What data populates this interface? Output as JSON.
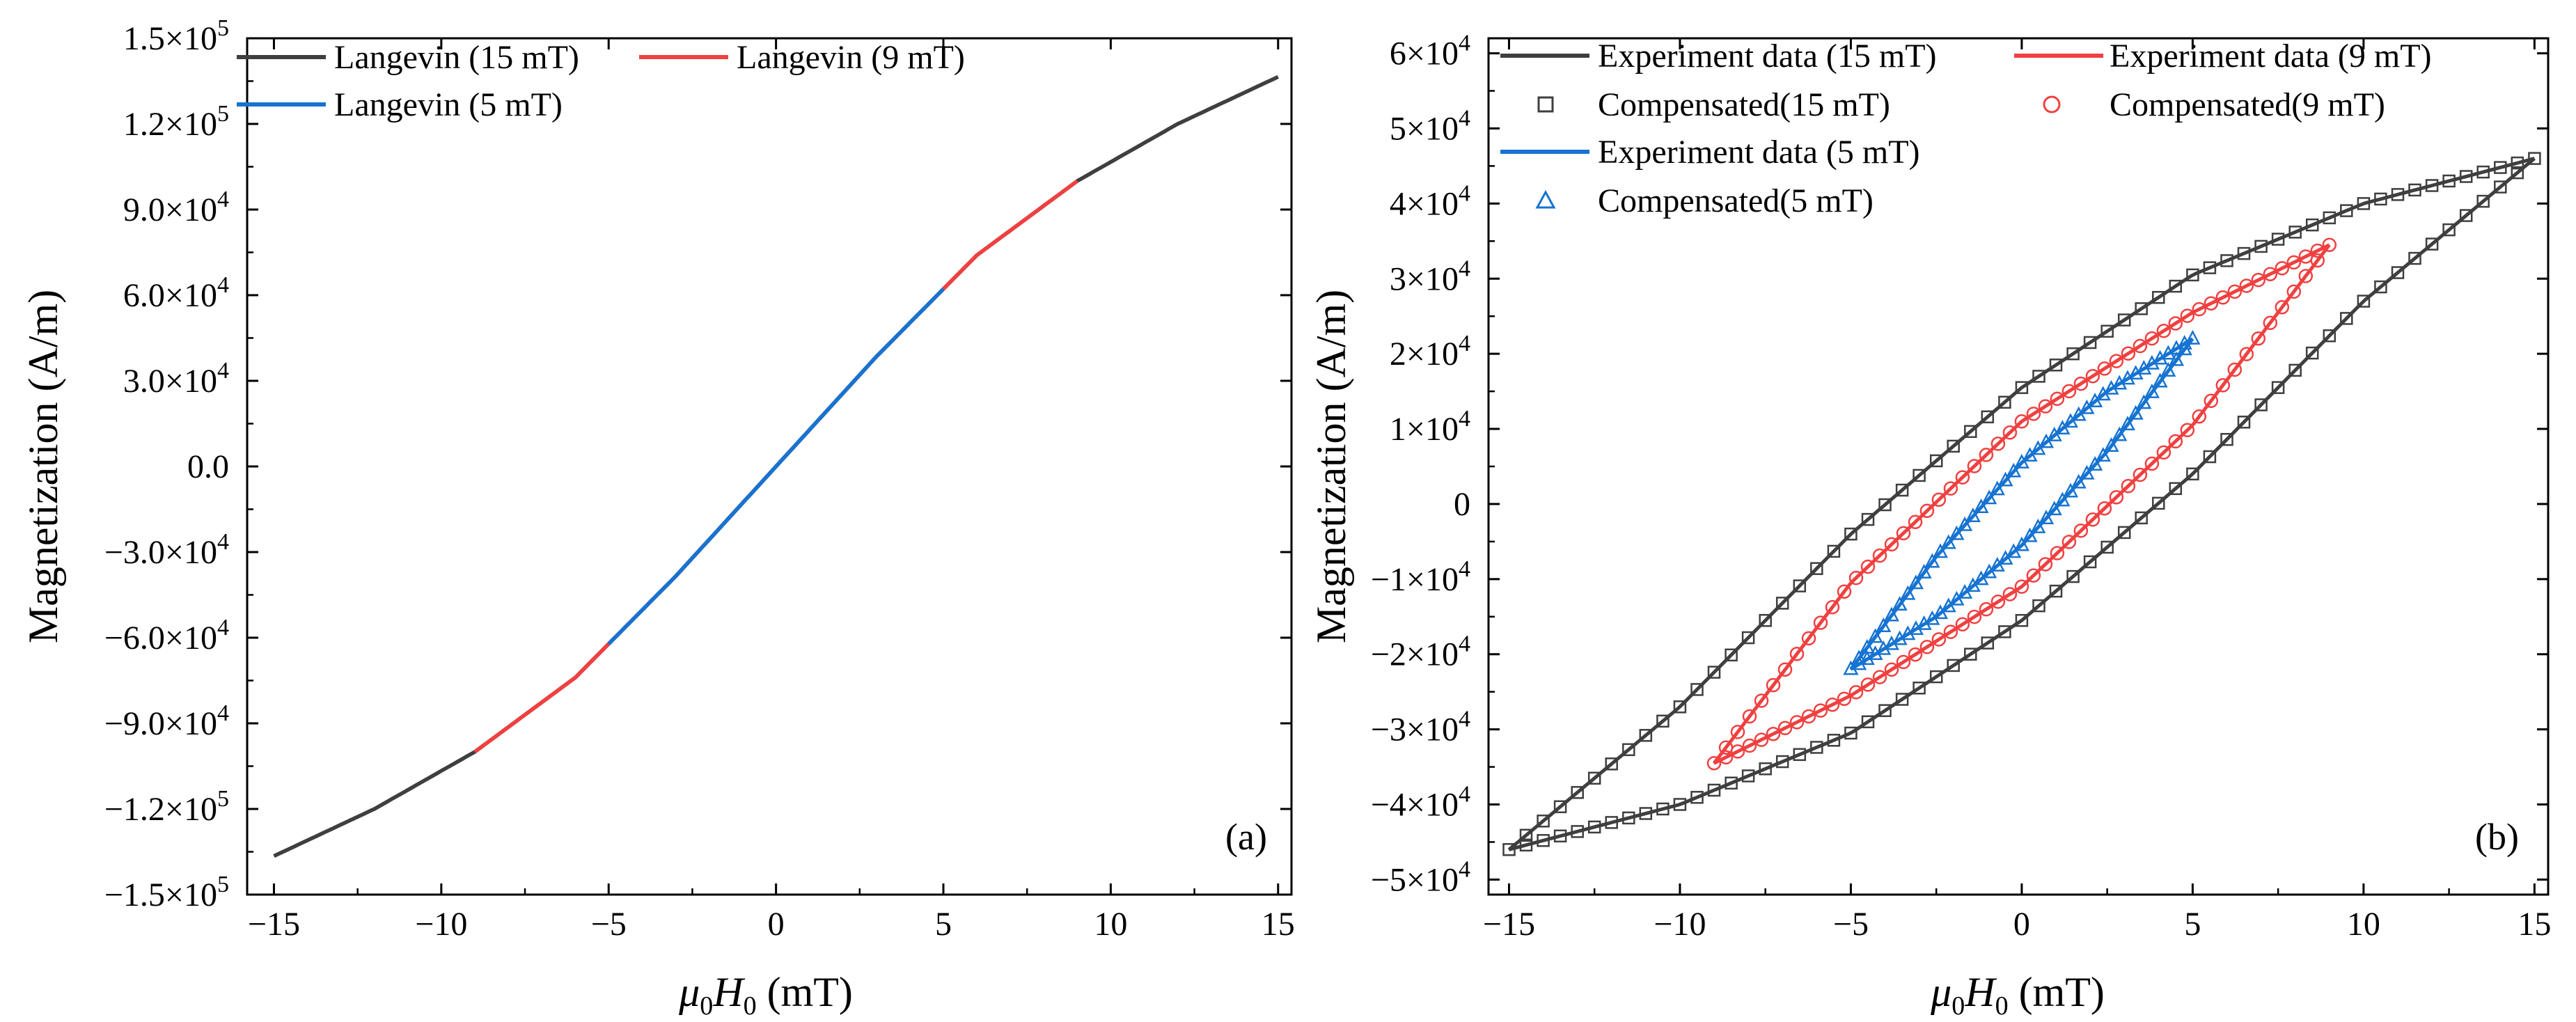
{
  "colors": {
    "c15": "#3f3f3f",
    "c9": "#f04040",
    "c5": "#1673d1",
    "axis": "#000000"
  },
  "chart_data": [
    {
      "type": "line",
      "panel": "(a)",
      "xlabel": "μ0H0 (mT)",
      "xlabel_parts": {
        "mu": "μ",
        "mu_sub": "0",
        "h": "H",
        "h_sub": "0",
        "unit": " (mT)"
      },
      "ylabel": "Magnetization (A/m)",
      "xlim": [
        -15.8,
        15.4
      ],
      "ylim": [
        -150000,
        150000
      ],
      "x_ticks": [
        -15,
        -10,
        -5,
        0,
        5,
        10,
        15
      ],
      "x_tick_labels": [
        "−15",
        "−10",
        "−5",
        "0",
        "5",
        "10",
        "15"
      ],
      "y_ticks": [
        150000,
        120000,
        90000,
        60000,
        30000,
        0,
        -30000,
        -60000,
        -90000,
        -120000,
        -150000
      ],
      "y_tick_labels": [
        {
          "m": "1.5×10",
          "e": "5"
        },
        {
          "m": "1.2×10",
          "e": "5"
        },
        {
          "m": "9.0×10",
          "e": "4"
        },
        {
          "m": "6.0×10",
          "e": "4"
        },
        {
          "m": "3.0×10",
          "e": "4"
        },
        {
          "m": "0.0",
          "e": ""
        },
        {
          "m": "−3.0×10",
          "e": "4"
        },
        {
          "m": "−6.0×10",
          "e": "4"
        },
        {
          "m": "−9.0×10",
          "e": "4"
        },
        {
          "m": "−1.2×10",
          "e": "5"
        },
        {
          "m": "−1.5×10",
          "e": "5"
        }
      ],
      "legend_position": "top-left",
      "series": [
        {
          "name": "Langevin (15 mT)",
          "color_key": "c15",
          "x_range": [
            -15,
            15
          ],
          "x": [
            -15,
            -12,
            -9,
            -6,
            -3,
            0,
            3,
            6,
            9,
            12,
            15
          ],
          "y": [
            -136500,
            -120000,
            -100000,
            -74000,
            -38500,
            0,
            38500,
            74000,
            100000,
            120000,
            136500
          ]
        },
        {
          "name": "Langevin (9 mT)",
          "color_key": "c9",
          "x_range": [
            -9,
            9
          ]
        },
        {
          "name": "Langevin (5 mT)",
          "color_key": "c5",
          "x_range": [
            -5,
            5
          ]
        }
      ]
    },
    {
      "type": "line",
      "panel": "(b)",
      "xlabel": "μ0H0 (mT)",
      "xlabel_parts": {
        "mu": "μ",
        "mu_sub": "0",
        "h": "H",
        "h_sub": "0",
        "unit": " (mT)"
      },
      "ylabel": "Magnetization (A/m)",
      "xlim": [
        -15.6,
        15.4
      ],
      "ylim": [
        -52000,
        62000
      ],
      "x_ticks": [
        -15,
        -10,
        -5,
        0,
        5,
        10,
        15
      ],
      "x_tick_labels": [
        "−15",
        "−10",
        "−5",
        "0",
        "5",
        "10",
        "15"
      ],
      "y_ticks": [
        60000,
        50000,
        40000,
        30000,
        20000,
        10000,
        0,
        -10000,
        -20000,
        -30000,
        -40000,
        -50000
      ],
      "y_tick_labels": [
        {
          "m": "6×10",
          "e": "4"
        },
        {
          "m": "5×10",
          "e": "4"
        },
        {
          "m": "4×10",
          "e": "4"
        },
        {
          "m": "3×10",
          "e": "4"
        },
        {
          "m": "2×10",
          "e": "4"
        },
        {
          "m": "1×10",
          "e": "4"
        },
        {
          "m": "0",
          "e": ""
        },
        {
          "m": "−1×10",
          "e": "4"
        },
        {
          "m": "−2×10",
          "e": "4"
        },
        {
          "m": "−3×10",
          "e": "4"
        },
        {
          "m": "−4×10",
          "e": "4"
        },
        {
          "m": "−5×10",
          "e": "4"
        }
      ],
      "legend_position": "top-left",
      "series": [
        {
          "name": "Experiment data (15 mT)",
          "color_key": "c15",
          "style": "line",
          "Hmax": 15,
          "Mmax": 46000,
          "Mr": 15500,
          "upper_branch": {
            "x": [
              15,
              10,
              5,
              0,
              -5,
              -10,
              -15
            ],
            "y": [
              46000,
              40000,
              30500,
              15500,
              -4000,
              -27000,
              -46000
            ]
          }
        },
        {
          "name": "Compensated(15 mT)",
          "color_key": "c15",
          "style": "square"
        },
        {
          "name": "Experiment data (9 mT)",
          "color_key": "c9",
          "style": "line",
          "Hmax": 9,
          "Mmax": 34500,
          "Mr": 11000,
          "upper_branch": {
            "x": [
              9,
              5,
              0,
              -5,
              -9
            ],
            "y": [
              34500,
              25500,
              11000,
              -10500,
              -34500
            ]
          }
        },
        {
          "name": "Compensated(9 mT)",
          "color_key": "c9",
          "style": "circle"
        },
        {
          "name": "Experiment data (5 mT)",
          "color_key": "c5",
          "style": "line",
          "Hmax": 5,
          "Mmax": 22000,
          "Mr": 5500,
          "upper_branch": {
            "x": [
              5,
              2.5,
              0,
              -2.5,
              -5
            ],
            "y": [
              22000,
              15000,
              5500,
              -7000,
              -22000
            ]
          }
        },
        {
          "name": "Compensated(5 mT)",
          "color_key": "c5",
          "style": "triangle"
        }
      ]
    }
  ]
}
